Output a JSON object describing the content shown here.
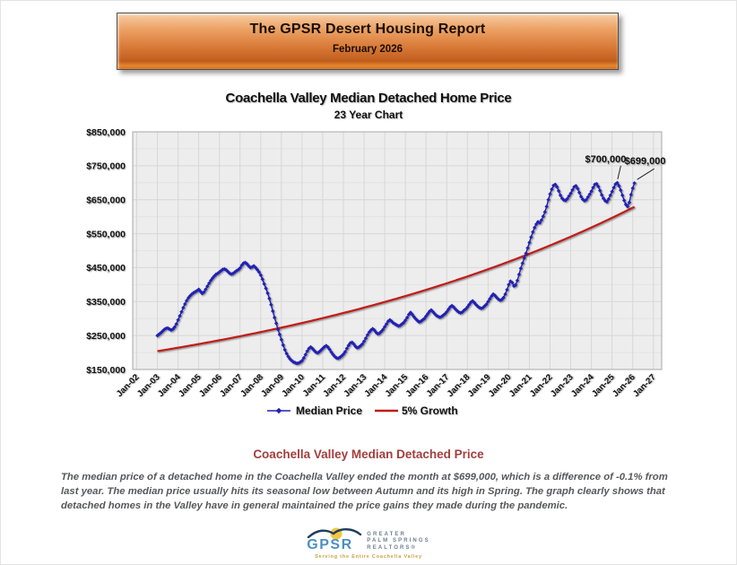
{
  "banner": {
    "title": "The GPSR Desert Housing Report",
    "subtitle": "February 2026"
  },
  "chart_data": {
    "type": "line",
    "title": "Coachella Valley Median Detached Home Price",
    "subtitle": "23 Year Chart",
    "grid": true,
    "legend_position": "bottom-center",
    "x_axis": {
      "tick_labels": [
        "Jan-02",
        "Jan-03",
        "Jan-04",
        "Jan-05",
        "Jan-06",
        "Jan-07",
        "Jan-08",
        "Jan-09",
        "Jan-10",
        "Jan-11",
        "Jan-12",
        "Jan-13",
        "Jan-14",
        "Jan-15",
        "Jan-16",
        "Jan-17",
        "Jan-18",
        "Jan-19",
        "Jan-20",
        "Jan-21",
        "Jan-22",
        "Jan-23",
        "Jan-24",
        "Jan-25",
        "Jan-26",
        "Jan-27"
      ]
    },
    "y_axis": {
      "tick_labels": [
        "$850,000",
        "$750,000",
        "$650,000",
        "$550,000",
        "$450,000",
        "$350,000",
        "$250,000",
        "$150,000"
      ],
      "min": 150000,
      "max": 850000,
      "tick_step": 100000,
      "minor_gridline_step": 50000
    },
    "colors": {
      "median_price": "#2020b2",
      "growth_line": "#c11b17",
      "plot_background": "#ededed",
      "gridline_major": "#d7d7d7",
      "gridline_minor": "#e3e3e3",
      "plot_border": "#a8a8a8"
    },
    "annotations": [
      {
        "label": "$700,000",
        "month": "Apr-25",
        "value_usd_k": 700
      },
      {
        "label": "$699,000",
        "month": "Feb-26",
        "value_usd_k": 699
      }
    ],
    "series": [
      {
        "name": "Median Price",
        "marker": "diamond",
        "frequency": "monthly",
        "start_month": "Jan-03",
        "end_month": "Feb-26",
        "units": "USD thousands (estimated from chart)",
        "values_usd_k": [
          250,
          254,
          258,
          263,
          268,
          271,
          272,
          269,
          266,
          269,
          275,
          284,
          296,
          308,
          320,
          332,
          343,
          353,
          361,
          367,
          372,
          376,
          379,
          382,
          386,
          380,
          374,
          378,
          386,
          395,
          404,
          412,
          419,
          425,
          430,
          433,
          437,
          441,
          445,
          446,
          443,
          438,
          433,
          431,
          433,
          437,
          441,
          444,
          449,
          457,
          463,
          465,
          461,
          455,
          450,
          452,
          455,
          450,
          444,
          437,
          428,
          416,
          402,
          389,
          375,
          359,
          341,
          322,
          303,
          286,
          268,
          253,
          238,
          222,
          208,
          197,
          188,
          181,
          176,
          172,
          170,
          168,
          169,
          172,
          176,
          184,
          194,
          204,
          212,
          216,
          212,
          206,
          201,
          199,
          202,
          207,
          212,
          217,
          220,
          216,
          209,
          201,
          194,
          188,
          184,
          183,
          186,
          190,
          195,
          202,
          212,
          221,
          228,
          230,
          225,
          218,
          214,
          216,
          220,
          225,
          233,
          242,
          252,
          260,
          266,
          270,
          266,
          259,
          255,
          257,
          262,
          268,
          276,
          284,
          292,
          296,
          292,
          287,
          284,
          281,
          278,
          280,
          284,
          288,
          295,
          303,
          312,
          318,
          312,
          305,
          299,
          294,
          290,
          292,
          296,
          300,
          307,
          314,
          321,
          325,
          320,
          314,
          309,
          306,
          304,
          306,
          310,
          314,
          320,
          327,
          334,
          338,
          334,
          328,
          323,
          319,
          317,
          319,
          324,
          328,
          334,
          341,
          348,
          352,
          347,
          341,
          336,
          332,
          330,
          332,
          337,
          342,
          350,
          358,
          366,
          372,
          368,
          362,
          357,
          354,
          356,
          362,
          372,
          385,
          400,
          410,
          406,
          396,
          399,
          412,
          430,
          448,
          463,
          478,
          492,
          508,
          524,
          540,
          555,
          568,
          578,
          585,
          582,
          590,
          601,
          614,
          630,
          650,
          667,
          681,
          692,
          695,
          688,
          676,
          663,
          654,
          649,
          648,
          653,
          661,
          669,
          679,
          688,
          691,
          683,
          671,
          659,
          651,
          647,
          650,
          658,
          666,
          675,
          686,
          695,
          697,
          689,
          677,
          664,
          654,
          647,
          644,
          652,
          663,
          674,
          686,
          696,
          700,
          691,
          678,
          663,
          648,
          636,
          630,
          642,
          665,
          684,
          699
        ]
      },
      {
        "name": "5% Growth",
        "marker": "none",
        "model": {
          "type": "compound_growth",
          "start_month": "Jan-03",
          "end_month": "Feb-26",
          "start_value_usd_k": 204,
          "annual_growth_rate": 0.05
        }
      }
    ]
  },
  "summary": {
    "heading": "Coachella Valley Median Detached Price",
    "body": "The median price of a detached home in the Coachella Valley ended the month at $699,000, which is a difference of -0.1% from last year. The median price usually hits its seasonal low between Autumn and its high in Spring. The graph clearly shows that detached homes in the Valley have in general maintained the price gains they made during the pandemic."
  },
  "logo": {
    "acronym": "GPSR",
    "name_lines": [
      "GREATER",
      "PALM SPRINGS",
      "REALTORS®"
    ],
    "tagline": "Serving the Entire Coachella Valley"
  }
}
